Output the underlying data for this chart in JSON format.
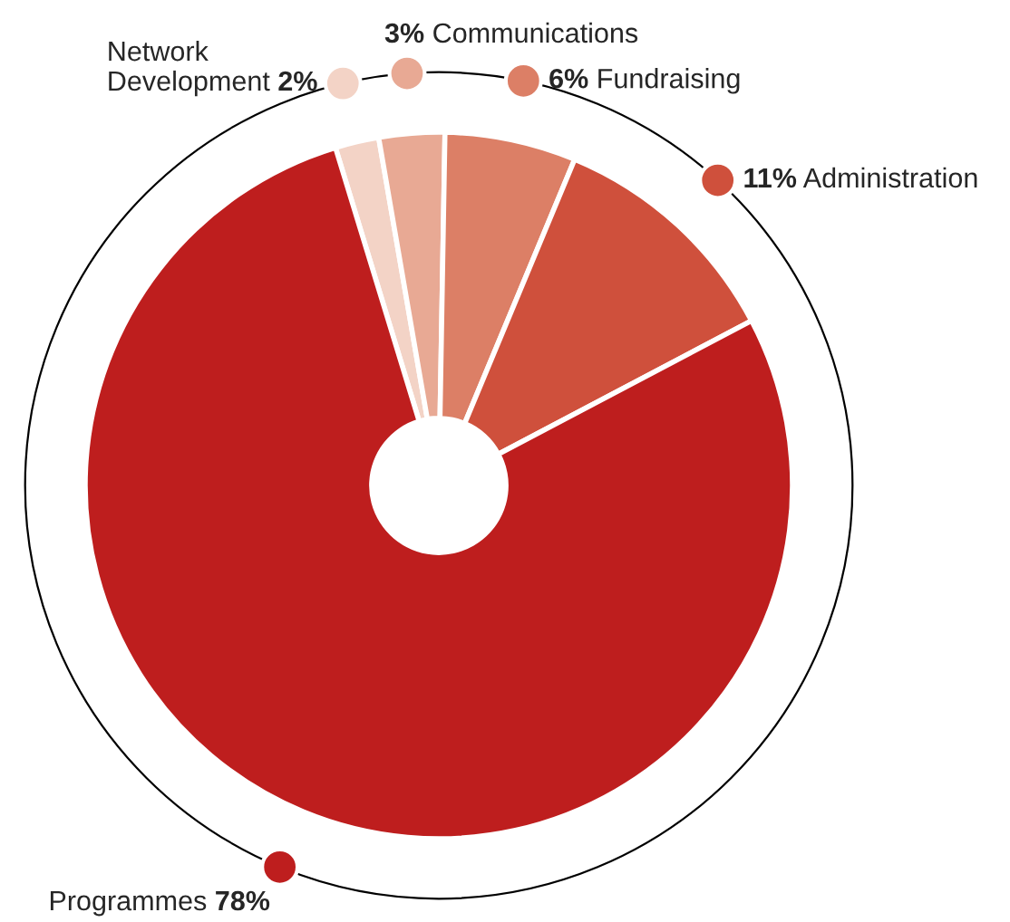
{
  "chart_data": {
    "type": "donut",
    "categories": [
      "Network\nDevelopment",
      "Communications",
      "Fundraising",
      "Administration",
      "Programmes"
    ],
    "values": [
      2,
      3,
      6,
      11,
      78
    ],
    "value_labels": [
      "2%",
      "3%",
      "6%",
      "11%",
      "78%"
    ],
    "colors": [
      "#f3d3c6",
      "#e8a994",
      "#dc7f66",
      "#cf503c",
      "#be1e1e"
    ]
  }
}
